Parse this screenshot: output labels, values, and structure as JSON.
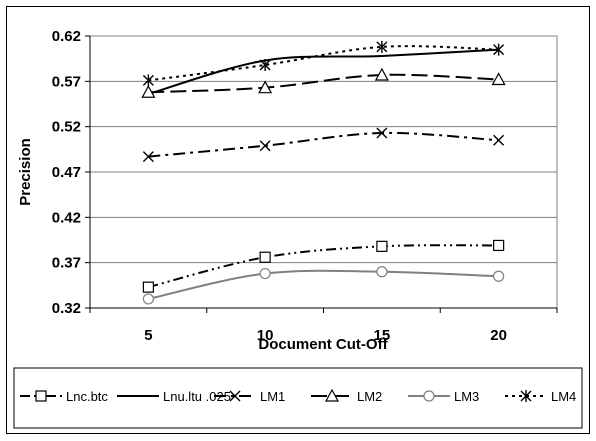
{
  "chart_data": {
    "type": "line",
    "title": "",
    "xlabel": "Document Cut-Off",
    "ylabel": "Precision",
    "x": [
      5,
      10,
      15,
      20
    ],
    "x_tick_labels": [
      "5",
      "10",
      "15",
      "20"
    ],
    "ylim": [
      0.32,
      0.62
    ],
    "y_ticks": [
      0.32,
      0.37,
      0.42,
      0.47,
      0.52,
      0.57,
      0.62
    ],
    "y_tick_labels": [
      "0.32",
      "0.37",
      "0.42",
      "0.47",
      "0.52",
      "0.57",
      "0.62"
    ],
    "grid": true,
    "legend_position": "bottom",
    "series": [
      {
        "name": "Lnc.btc",
        "values": [
          0.343,
          0.376,
          0.388,
          0.389
        ],
        "color": "#000000",
        "dash": "dash-dot-dot",
        "marker": "square"
      },
      {
        "name": "Lnu.ltu .025",
        "values": [
          0.556,
          0.593,
          0.598,
          0.605
        ],
        "color": "#000000",
        "dash": "solid",
        "marker": "none"
      },
      {
        "name": "LM1",
        "values": [
          0.487,
          0.499,
          0.513,
          0.505
        ],
        "color": "#000000",
        "dash": "dash-dot",
        "marker": "x"
      },
      {
        "name": "LM2",
        "values": [
          0.558,
          0.563,
          0.577,
          0.572
        ],
        "color": "#000000",
        "dash": "long-dash",
        "marker": "triangle"
      },
      {
        "name": "LM3",
        "values": [
          0.33,
          0.358,
          0.36,
          0.355
        ],
        "color": "#808080",
        "dash": "solid",
        "marker": "circle"
      },
      {
        "name": "LM4",
        "values": [
          0.571,
          0.588,
          0.608,
          0.605
        ],
        "color": "#000000",
        "dash": "dot",
        "marker": "asterisk"
      }
    ]
  }
}
